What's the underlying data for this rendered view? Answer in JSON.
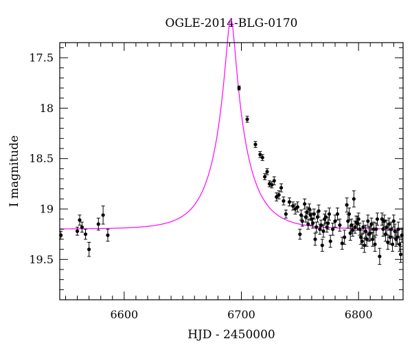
{
  "chart_data": {
    "type": "scatter",
    "title": "OGLE-2014-BLG-0170",
    "xlabel": "HJD - 2450000",
    "ylabel": "I magnitude",
    "xlim": [
      6545,
      6838
    ],
    "ylim": [
      19.9,
      17.35
    ],
    "y_inverted": true,
    "grid": false,
    "x_ticks": [
      6600,
      6700,
      6800
    ],
    "y_ticks": [
      17.5,
      18,
      18.5,
      19,
      19.5
    ],
    "x_tick_labels": [
      "6600",
      "6700",
      "6800"
    ],
    "y_tick_labels": [
      "17.5",
      "18",
      "18.5",
      "19",
      "19.5"
    ],
    "model": {
      "t0": 6691.0,
      "u0": 0.148,
      "tE": 27.0,
      "baseline_mag": 19.2,
      "color": "#ff00ff"
    },
    "series": [
      {
        "type": "errorbar",
        "color": "#000000",
        "x": [
          6546,
          6560,
          6562,
          6564,
          6567,
          6570,
          6578,
          6582,
          6586,
          6698,
          6705,
          6712,
          6716,
          6718,
          6720,
          6722,
          6724,
          6726,
          6728,
          6730,
          6732,
          6734,
          6736,
          6738,
          6741,
          6744,
          6746,
          6748,
          6750,
          6751,
          6752,
          6754,
          6755,
          6756,
          6757,
          6758,
          6759,
          6760,
          6761,
          6762,
          6763,
          6764,
          6765,
          6766,
          6767,
          6768,
          6769,
          6770,
          6771,
          6772,
          6773,
          6774,
          6775,
          6776,
          6778,
          6780,
          6782,
          6784,
          6786,
          6788,
          6790,
          6791,
          6792,
          6793,
          6794,
          6795,
          6796,
          6797,
          6798,
          6799,
          6800,
          6801,
          6802,
          6803,
          6804,
          6805,
          6806,
          6807,
          6808,
          6809,
          6810,
          6811,
          6812,
          6813,
          6814,
          6815,
          6816,
          6818,
          6820,
          6821,
          6822,
          6823,
          6824,
          6825,
          6826,
          6827,
          6828,
          6829,
          6830,
          6831,
          6832,
          6833,
          6834,
          6835,
          6836,
          6837
        ],
        "y": [
          19.26,
          19.22,
          19.11,
          19.18,
          19.25,
          19.4,
          19.15,
          19.06,
          19.26,
          17.8,
          18.11,
          18.36,
          18.46,
          18.49,
          18.68,
          18.63,
          18.75,
          18.76,
          18.72,
          18.88,
          18.86,
          18.79,
          18.92,
          19.05,
          18.93,
          18.97,
          19.0,
          18.98,
          19.25,
          19.06,
          19.12,
          18.95,
          19.08,
          19.03,
          19.15,
          19.0,
          19.06,
          19.1,
          19.14,
          19.05,
          19.3,
          19.18,
          19.08,
          19.02,
          19.2,
          19.16,
          19.36,
          19.22,
          19.1,
          19.08,
          19.18,
          19.14,
          19.05,
          19.32,
          19.2,
          19.12,
          19.05,
          19.16,
          19.34,
          19.28,
          18.96,
          19.12,
          19.05,
          19.24,
          19.16,
          19.21,
          18.9,
          19.18,
          19.13,
          19.14,
          19.1,
          19.2,
          19.28,
          19.32,
          19.18,
          19.36,
          19.22,
          19.3,
          19.12,
          19.25,
          19.24,
          19.15,
          19.3,
          19.2,
          19.35,
          19.2,
          19.1,
          19.47,
          19.1,
          19.2,
          19.12,
          19.25,
          19.18,
          19.33,
          19.15,
          19.28,
          19.2,
          19.35,
          19.12,
          19.22,
          19.3,
          19.28,
          19.2,
          19.35,
          19.45,
          19.26
        ],
        "yerr": [
          0.04,
          0.04,
          0.05,
          0.05,
          0.05,
          0.07,
          0.06,
          0.09,
          0.06,
          0.02,
          0.03,
          0.03,
          0.03,
          0.03,
          0.03,
          0.03,
          0.03,
          0.03,
          0.04,
          0.04,
          0.04,
          0.04,
          0.04,
          0.04,
          0.04,
          0.04,
          0.05,
          0.05,
          0.05,
          0.05,
          0.05,
          0.05,
          0.05,
          0.05,
          0.05,
          0.05,
          0.05,
          0.06,
          0.05,
          0.05,
          0.06,
          0.05,
          0.05,
          0.06,
          0.05,
          0.05,
          0.06,
          0.06,
          0.05,
          0.06,
          0.05,
          0.06,
          0.06,
          0.06,
          0.06,
          0.06,
          0.06,
          0.06,
          0.06,
          0.07,
          0.07,
          0.07,
          0.06,
          0.07,
          0.06,
          0.06,
          0.08,
          0.06,
          0.06,
          0.07,
          0.06,
          0.06,
          0.07,
          0.07,
          0.06,
          0.07,
          0.06,
          0.07,
          0.06,
          0.07,
          0.07,
          0.06,
          0.07,
          0.07,
          0.07,
          0.06,
          0.06,
          0.08,
          0.06,
          0.07,
          0.06,
          0.07,
          0.07,
          0.07,
          0.06,
          0.07,
          0.07,
          0.07,
          0.06,
          0.07,
          0.07,
          0.07,
          0.07,
          0.07,
          0.08,
          0.07
        ]
      }
    ]
  }
}
